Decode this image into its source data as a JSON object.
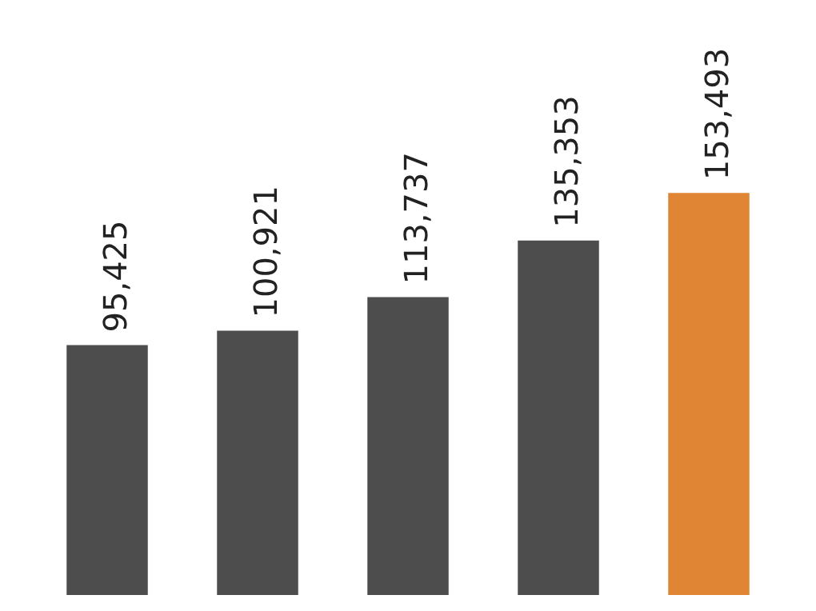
{
  "chart_data": {
    "type": "bar",
    "categories": [
      null,
      null,
      null,
      null,
      null
    ],
    "values": [
      95425,
      100921,
      113737,
      135353,
      153493
    ],
    "value_labels": [
      "95,425",
      "100,921",
      "113,737",
      "135,353",
      "153,493"
    ],
    "colors": [
      "#4d4d4d",
      "#4d4d4d",
      "#4d4d4d",
      "#4d4d4d",
      "#e08533"
    ]
  }
}
